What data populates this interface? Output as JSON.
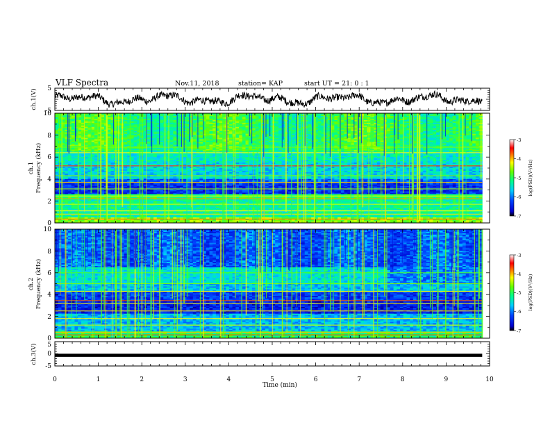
{
  "header": {
    "title": "VLF Spectra",
    "date": "Nov.11, 2018",
    "station": "station= KAP",
    "start_time": "start  UT =   21: 0  : 1"
  },
  "chart_data": [
    {
      "type": "line",
      "panel": "ch1-waveform",
      "ylabel": "ch.1(V)",
      "ylim": [
        -5,
        5
      ],
      "yticks": [
        "5",
        "-5"
      ],
      "xlim": [
        0,
        10
      ],
      "x_end": 9.83,
      "color": "#000000"
    },
    {
      "type": "heatmap",
      "panel": "ch1-spectrogram",
      "ylabel_line1": "ch.1",
      "ylabel_line2": "Frequency  (kHz)",
      "ylim": [
        0,
        10
      ],
      "yticks": [
        "0",
        "2",
        "4",
        "6",
        "8",
        "10"
      ],
      "xlim": [
        0,
        10
      ],
      "x_end": 9.83,
      "colorbar": {
        "label": "log(PSD)(V²/Hz)",
        "range": [
          -7,
          -3
        ],
        "ticks": [
          "-3",
          "-4",
          "-5",
          "-6",
          "-7"
        ]
      }
    },
    {
      "type": "heatmap",
      "panel": "ch2-spectrogram",
      "ylabel_line1": "ch.2",
      "ylabel_line2": "Frequency  (kHz)",
      "ylim": [
        0,
        10
      ],
      "yticks": [
        "0",
        "2",
        "4",
        "6",
        "8",
        "10"
      ],
      "xlim": [
        0,
        10
      ],
      "x_end": 9.83,
      "colorbar": {
        "label": "log(PSD)(V²/Hz)",
        "range": [
          -7,
          -3
        ],
        "ticks": [
          "-3",
          "-4",
          "-5",
          "-6",
          "-7"
        ]
      }
    },
    {
      "type": "line",
      "panel": "ch3-waveform",
      "ylabel": "ch.3(V)",
      "ylim": [
        -5,
        5
      ],
      "yticks": [
        "5",
        "0",
        "-5"
      ],
      "xlim": [
        0,
        10
      ],
      "x_end": 9.83,
      "constant_value": -0.6,
      "color": "#000000",
      "xlabel": "Time  (min)",
      "xticks": [
        "0",
        "1",
        "2",
        "3",
        "4",
        "5",
        "6",
        "7",
        "8",
        "9",
        "10"
      ]
    }
  ]
}
